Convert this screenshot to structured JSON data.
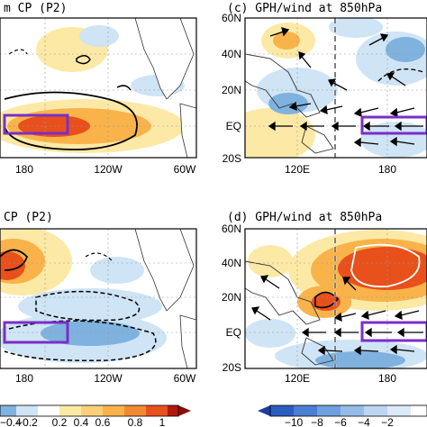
{
  "panels": [
    {
      "title": "m CP (P2)",
      "lon_ticks": [
        "180",
        "120W",
        "60W"
      ]
    },
    {
      "title": "(c) GPH/wind at 850hPa",
      "lat_ticks": [
        "60N",
        "40N",
        "20N",
        "EQ",
        "20S"
      ],
      "lon_ticks": [
        "120E",
        "180"
      ]
    },
    {
      "title": "CP (P2)",
      "lon_ticks": [
        "180",
        "120W",
        "60W"
      ]
    },
    {
      "title": "(d) GPH/wind at 850hPa",
      "lat_ticks": [
        "60N",
        "40N",
        "20N",
        "EQ",
        "20S"
      ],
      "lon_ticks": [
        "120E",
        "180"
      ]
    }
  ],
  "colorbar_left": {
    "labels": [
      "−0.4",
      "−0.2",
      "0.2",
      "0.4",
      "0.6",
      "0.8",
      "1"
    ]
  },
  "colorbar_right": {
    "labels": [
      "−10",
      "−8",
      "−6",
      "−4",
      "−2"
    ]
  },
  "colors": {
    "box": "#7a2ec8",
    "warm_light": "#fde9a6",
    "warm_mid": "#f9b34a",
    "warm_dark": "#e8501c",
    "cool_light": "#cfe4f5",
    "cool_mid": "#7fb2de"
  }
}
